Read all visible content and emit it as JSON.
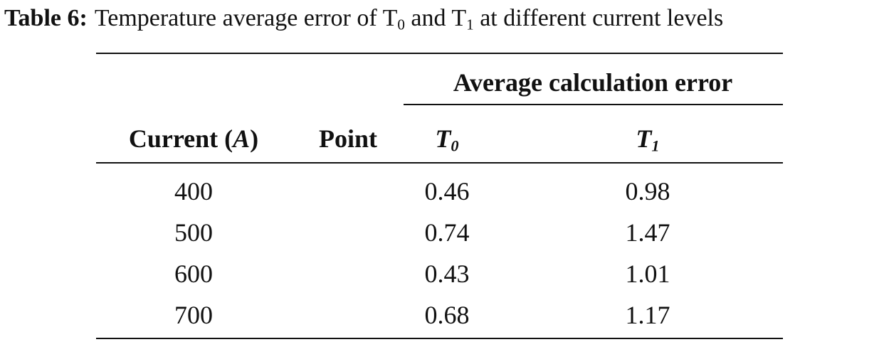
{
  "caption": {
    "label": "Table 6:",
    "text": [
      "Temperature average error of T",
      "0",
      " and T",
      "1",
      " at different current levels"
    ]
  },
  "table": {
    "header": {
      "current": [
        "Current (",
        "A",
        ")"
      ],
      "point": "Point",
      "group": "Average calculation error",
      "t0": [
        "T",
        "0"
      ],
      "t1": [
        "T",
        "1"
      ]
    },
    "rows": [
      [
        400,
        0.46,
        0.98
      ],
      [
        500,
        0.74,
        1.47
      ],
      [
        600,
        0.43,
        1.01
      ],
      [
        700,
        0.68,
        1.17
      ]
    ]
  }
}
